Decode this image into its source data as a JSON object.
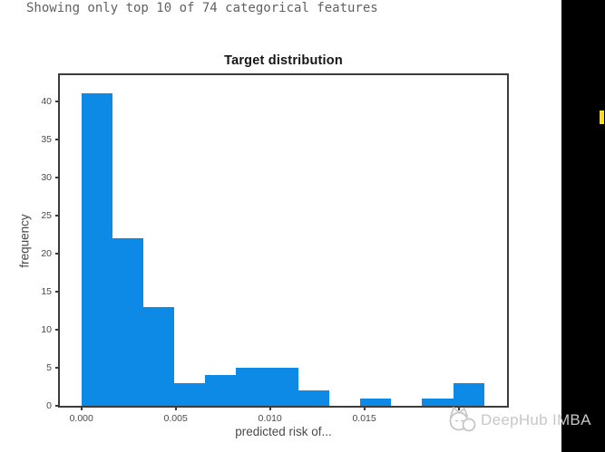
{
  "header": {
    "note": "Showing only top 10 of 74 categorical features"
  },
  "watermark": {
    "text": "DeepHub IMBA",
    "logo_icon": "cat-face-logo",
    "color": "#c7c7c7"
  },
  "sidebar": {
    "background": "#000000",
    "marker_color": "#ffdf08"
  },
  "chart_data": {
    "type": "bar",
    "subtype": "histogram",
    "title": "Target distribution",
    "xlabel": "predicted risk of...",
    "ylabel": "frequency",
    "bar_color": "#0d8ae6",
    "spine_color": "#3c3c3c",
    "grid": false,
    "legend": null,
    "bin_edges": [
      0.0,
      0.00164,
      0.00329,
      0.00493,
      0.00657,
      0.00821,
      0.00986,
      0.0115,
      0.01314,
      0.01479,
      0.01643,
      0.01807,
      0.01971,
      0.02136
    ],
    "counts": [
      41,
      22,
      13,
      3,
      4,
      5,
      5,
      2,
      0,
      1,
      0,
      1,
      3
    ],
    "total_count": 100,
    "xlim": [
      -0.00114,
      0.02257
    ],
    "ylim": [
      0,
      43.4
    ],
    "x_ticks": [
      {
        "v": 0.0,
        "label": "0.000"
      },
      {
        "v": 0.005,
        "label": "0.005"
      },
      {
        "v": 0.01,
        "label": "0.010"
      },
      {
        "v": 0.015,
        "label": "0.015"
      },
      {
        "v": 0.02,
        "label": ""
      }
    ],
    "y_ticks": [
      {
        "v": 0,
        "label": "0"
      },
      {
        "v": 5,
        "label": "5"
      },
      {
        "v": 10,
        "label": "10"
      },
      {
        "v": 15,
        "label": "15"
      },
      {
        "v": 20,
        "label": "20"
      },
      {
        "v": 25,
        "label": "25"
      },
      {
        "v": 30,
        "label": "30"
      },
      {
        "v": 35,
        "label": "35"
      },
      {
        "v": 40,
        "label": "40"
      }
    ]
  }
}
